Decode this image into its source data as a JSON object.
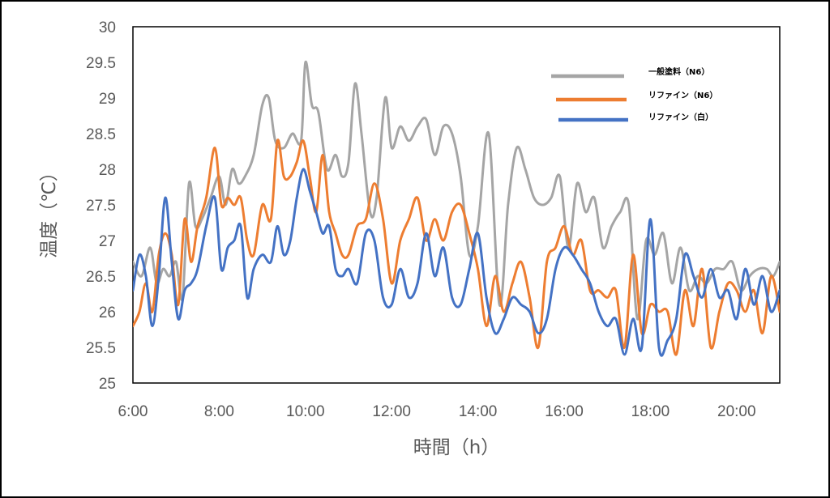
{
  "chart_data": {
    "type": "line",
    "xlabel": "時間（h）",
    "ylabel": "温度（℃）",
    "ylim": [
      25,
      30
    ],
    "xlim": [
      6,
      21
    ],
    "x_tick_labels": [
      "6:00",
      "8:00",
      "10:00",
      "12:00",
      "14:00",
      "16:00",
      "18:00",
      "20:00"
    ],
    "y_tick_labels": [
      "25",
      "25.5",
      "26",
      "26.5",
      "27",
      "27.5",
      "28",
      "28.5",
      "29",
      "29.5",
      "30"
    ],
    "grid": false,
    "legend_position": "top-right",
    "series": [
      {
        "name": "一般塗料（N6）",
        "color": "#a5a5a5",
        "x": [
          6.0,
          6.2,
          6.4,
          6.55,
          6.7,
          6.85,
          7.0,
          7.15,
          7.3,
          7.45,
          7.6,
          7.8,
          8.0,
          8.15,
          8.3,
          8.45,
          8.6,
          8.8,
          9.0,
          9.15,
          9.3,
          9.5,
          9.7,
          9.9,
          10.0,
          10.15,
          10.3,
          10.5,
          10.7,
          10.85,
          11.0,
          11.15,
          11.3,
          11.5,
          11.65,
          11.85,
          12.0,
          12.2,
          12.4,
          12.6,
          12.8,
          13.0,
          13.2,
          13.4,
          13.6,
          13.8,
          14.0,
          14.25,
          14.5,
          14.7,
          14.9,
          15.1,
          15.3,
          15.5,
          15.7,
          15.9,
          16.1,
          16.3,
          16.5,
          16.7,
          16.9,
          17.1,
          17.3,
          17.5,
          17.7,
          17.9,
          18.1,
          18.3,
          18.5,
          18.7,
          18.9,
          19.1,
          19.3,
          19.5,
          19.7,
          19.9,
          20.1,
          20.3,
          20.5,
          20.7,
          20.85,
          21.0
        ],
        "values": [
          26.7,
          26.5,
          26.9,
          26.4,
          26.6,
          26.5,
          26.7,
          26.2,
          27.8,
          27.2,
          27.3,
          27.6,
          27.9,
          27.5,
          28.0,
          27.8,
          27.9,
          28.2,
          28.9,
          29.0,
          28.4,
          28.3,
          28.5,
          28.4,
          29.5,
          28.9,
          28.8,
          28.0,
          28.2,
          27.9,
          28.1,
          29.2,
          28.5,
          27.4,
          27.6,
          29.0,
          28.3,
          28.6,
          28.4,
          28.6,
          28.7,
          28.2,
          28.6,
          28.5,
          27.9,
          26.8,
          27.2,
          28.5,
          26.1,
          27.5,
          28.3,
          28.0,
          27.6,
          27.5,
          27.6,
          27.9,
          26.9,
          27.8,
          27.4,
          27.6,
          26.9,
          27.2,
          27.4,
          27.5,
          25.9,
          27.0,
          26.8,
          27.1,
          26.4,
          26.9,
          26.3,
          26.5,
          26.4,
          26.6,
          26.6,
          26.7,
          26.3,
          26.5,
          26.6,
          26.6,
          26.5,
          26.7
        ]
      },
      {
        "name": "リファイン（N6）",
        "color": "#ed7d31",
        "x": [
          6.0,
          6.15,
          6.3,
          6.45,
          6.6,
          6.75,
          6.9,
          7.05,
          7.2,
          7.35,
          7.5,
          7.7,
          7.9,
          8.05,
          8.2,
          8.35,
          8.5,
          8.65,
          8.8,
          9.0,
          9.2,
          9.35,
          9.5,
          9.65,
          9.8,
          9.95,
          10.1,
          10.25,
          10.4,
          10.55,
          10.7,
          10.85,
          11.0,
          11.2,
          11.4,
          11.6,
          11.8,
          12.0,
          12.2,
          12.4,
          12.6,
          12.8,
          13.0,
          13.2,
          13.4,
          13.6,
          13.8,
          14.0,
          14.2,
          14.4,
          14.6,
          14.8,
          15.0,
          15.2,
          15.4,
          15.6,
          15.8,
          16.0,
          16.2,
          16.4,
          16.6,
          16.8,
          17.0,
          17.2,
          17.4,
          17.6,
          17.8,
          18.0,
          18.2,
          18.4,
          18.6,
          18.8,
          19.0,
          19.2,
          19.4,
          19.6,
          19.8,
          20.0,
          20.2,
          20.4,
          20.6,
          20.8,
          21.0
        ],
        "values": [
          25.8,
          26.0,
          26.4,
          26.0,
          26.8,
          27.1,
          26.8,
          26.1,
          27.3,
          26.7,
          27.2,
          27.6,
          28.3,
          27.5,
          27.6,
          27.5,
          27.6,
          27.0,
          26.8,
          27.5,
          27.3,
          28.4,
          27.9,
          27.9,
          28.1,
          28.4,
          27.9,
          27.4,
          28.2,
          27.4,
          27.1,
          26.8,
          26.8,
          27.2,
          27.3,
          27.8,
          27.3,
          26.4,
          27.0,
          27.3,
          27.6,
          27.0,
          27.3,
          27.0,
          27.4,
          27.5,
          27.1,
          26.6,
          25.8,
          26.5,
          26.0,
          26.4,
          26.7,
          26.2,
          25.5,
          26.7,
          26.9,
          27.2,
          26.8,
          27.0,
          26.3,
          26.3,
          26.2,
          26.3,
          25.5,
          26.8,
          25.7,
          26.1,
          26.0,
          26.0,
          25.4,
          26.3,
          25.8,
          26.6,
          25.5,
          26.0,
          26.4,
          26.3,
          26.0,
          26.3,
          25.7,
          26.5,
          26.0
        ]
      },
      {
        "name": "リファイン（白）",
        "color": "#4472c4",
        "x": [
          6.0,
          6.15,
          6.3,
          6.45,
          6.6,
          6.75,
          6.9,
          7.05,
          7.2,
          7.35,
          7.5,
          7.7,
          7.9,
          8.05,
          8.2,
          8.35,
          8.5,
          8.65,
          8.8,
          9.0,
          9.2,
          9.35,
          9.5,
          9.65,
          9.8,
          9.95,
          10.1,
          10.25,
          10.4,
          10.55,
          10.7,
          10.85,
          11.0,
          11.2,
          11.4,
          11.6,
          11.8,
          12.0,
          12.2,
          12.4,
          12.6,
          12.8,
          13.0,
          13.2,
          13.4,
          13.6,
          13.8,
          14.0,
          14.2,
          14.4,
          14.6,
          14.8,
          15.0,
          15.2,
          15.4,
          15.6,
          15.8,
          16.0,
          16.2,
          16.4,
          16.6,
          16.8,
          17.0,
          17.2,
          17.4,
          17.6,
          17.8,
          18.0,
          18.2,
          18.4,
          18.6,
          18.8,
          19.0,
          19.2,
          19.4,
          19.6,
          19.8,
          20.0,
          20.2,
          20.4,
          20.6,
          20.8,
          21.0
        ],
        "values": [
          26.3,
          26.8,
          26.5,
          25.8,
          26.5,
          27.6,
          26.7,
          25.9,
          26.3,
          26.4,
          26.6,
          27.2,
          27.6,
          26.6,
          26.9,
          27.0,
          27.2,
          26.2,
          26.6,
          26.8,
          26.7,
          27.2,
          26.8,
          27.0,
          27.6,
          28.0,
          27.7,
          27.4,
          27.1,
          27.2,
          26.6,
          26.5,
          26.6,
          26.4,
          27.1,
          27.0,
          26.2,
          26.1,
          26.6,
          26.2,
          26.4,
          27.1,
          26.5,
          26.9,
          26.2,
          26.1,
          26.6,
          27.1,
          26.2,
          25.7,
          25.9,
          26.2,
          26.1,
          26.0,
          25.7,
          25.9,
          26.6,
          26.9,
          26.8,
          26.6,
          26.4,
          26.0,
          25.8,
          25.9,
          25.4,
          25.9,
          25.5,
          27.3,
          25.5,
          25.6,
          25.9,
          26.8,
          26.5,
          26.2,
          26.6,
          26.2,
          26.3,
          25.9,
          26.6,
          26.1,
          26.5,
          26.0,
          26.3
        ]
      }
    ]
  }
}
